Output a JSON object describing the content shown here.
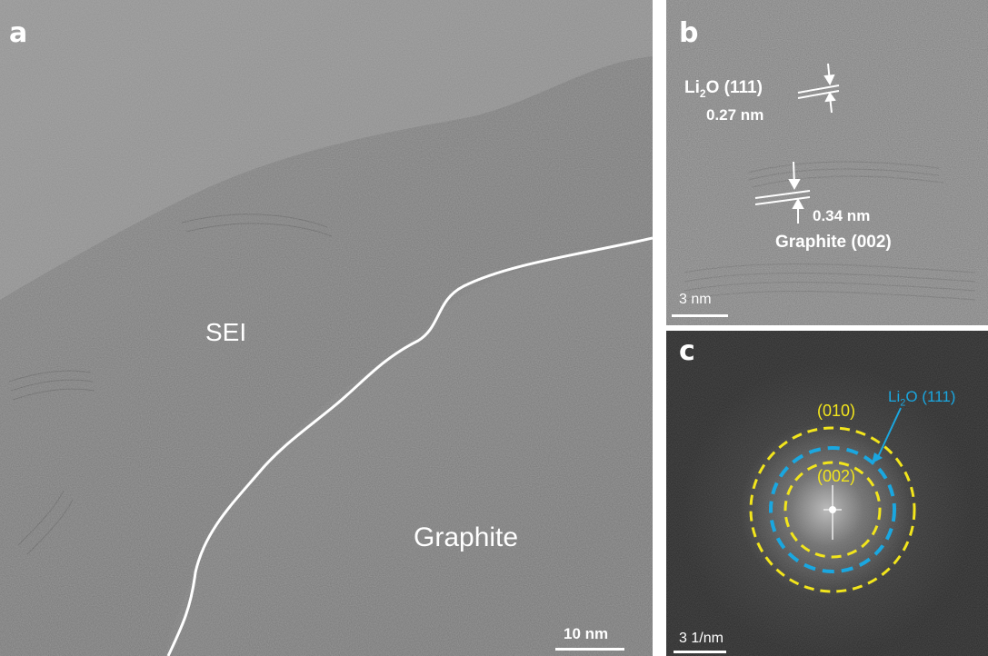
{
  "figure": {
    "panel_a": {
      "letter": "a",
      "region_top": "SEI",
      "region_bottom": "Graphite",
      "scale_label": "10 nm"
    },
    "panel_b": {
      "letter": "b",
      "li2o_prefix": "Li",
      "li2o_sub": "2",
      "li2o_suffix": "O (111)",
      "li2o_spacing": "0.27 nm",
      "graphite_spacing": "0.34 nm",
      "graphite_label": "Graphite (002)",
      "scale_label": "3 nm"
    },
    "panel_c": {
      "letter": "c",
      "ring_010": "(010)",
      "ring_002": "(002)",
      "li2o_prefix": "Li",
      "li2o_sub": "2",
      "li2o_suffix": "O (111)",
      "scale_label": "3 1/nm",
      "colors": {
        "graphite_rings": "#f2e51c",
        "li2o_ring": "#1aa7e0"
      }
    }
  }
}
